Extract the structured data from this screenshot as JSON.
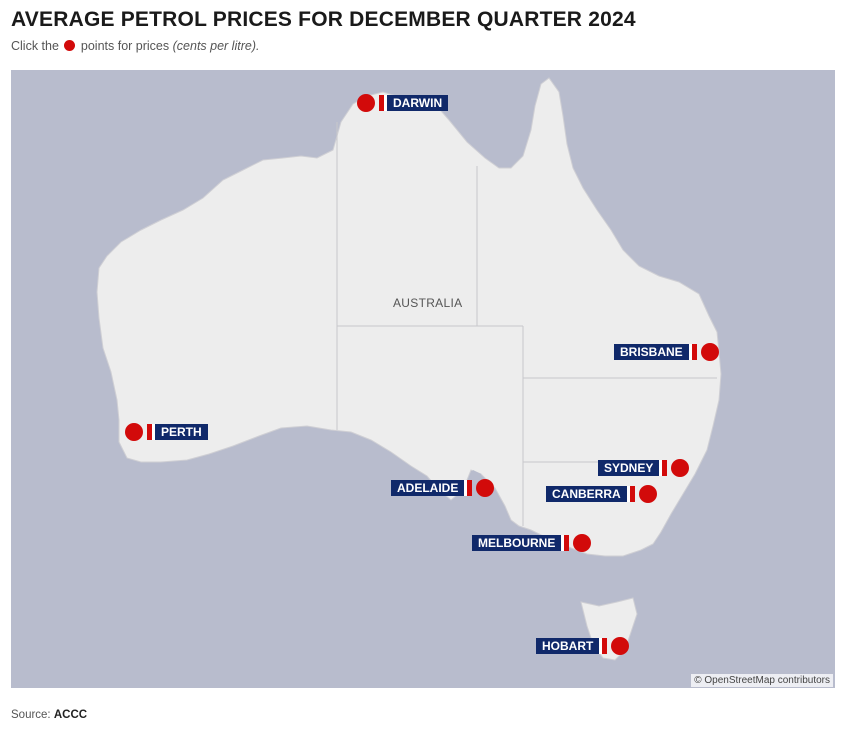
{
  "header": {
    "title": "AVERAGE PETROL PRICES FOR DECEMBER QUARTER 2024",
    "subtitle_pre": "Click the",
    "subtitle_post": "points for prices",
    "subtitle_unit": "(cents per litre)."
  },
  "map": {
    "country_label": "AUSTRALIA",
    "attribution": "© OpenStreetMap contributors",
    "colors": {
      "water": "#b8bccd",
      "land": "#ededed",
      "label_bg": "#10296a",
      "marker": "#d20a0a"
    },
    "cities": [
      {
        "name": "DARWIN"
      },
      {
        "name": "BRISBANE"
      },
      {
        "name": "PERTH"
      },
      {
        "name": "SYDNEY"
      },
      {
        "name": "ADELAIDE"
      },
      {
        "name": "CANBERRA"
      },
      {
        "name": "MELBOURNE"
      },
      {
        "name": "HOBART"
      }
    ]
  },
  "footer": {
    "source_label": "Source:",
    "source_value": "ACCC"
  }
}
